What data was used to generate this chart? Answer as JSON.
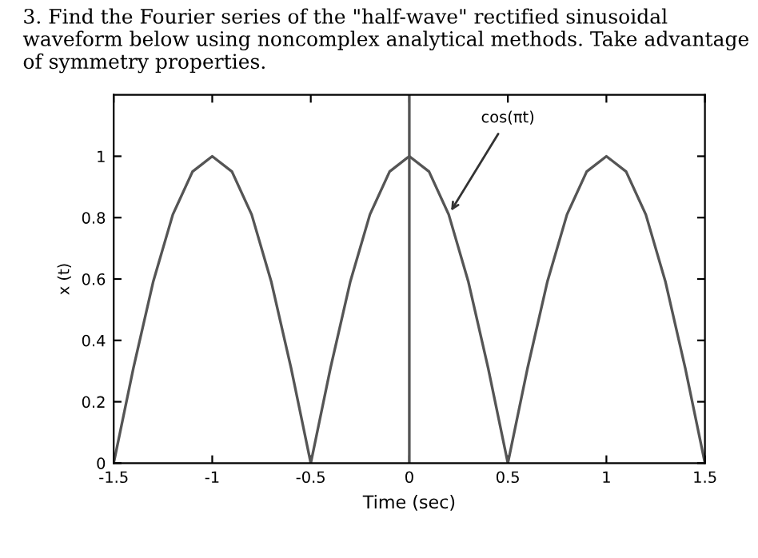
{
  "chart_data": {
    "type": "line",
    "title": "3. Find the Fourier series of the \"half-wave\" rectified sinusoidal waveform below using noncomplex analytical methods. Take advantage of symmetry properties.",
    "xlabel": "Time (sec)",
    "ylabel": "x (t)",
    "x": [
      -1.5,
      -1.4,
      -1.3,
      -1.2,
      -1.1,
      -1.0,
      -0.9,
      -0.8,
      -0.7,
      -0.6,
      -0.5,
      -0.4,
      -0.3,
      -0.2,
      -0.1,
      0,
      0.1,
      0.2,
      0.3,
      0.4,
      0.5,
      0.6,
      0.7,
      0.8,
      0.9,
      1.0,
      1.1,
      1.2,
      1.3,
      1.4,
      1.5
    ],
    "series": [
      {
        "color": "#555555",
        "values": [
          0,
          0.31,
          0.59,
          0.81,
          0.95,
          1,
          0.95,
          0.81,
          0.59,
          0.31,
          0,
          0.31,
          0.59,
          0.81,
          0.95,
          1,
          0.95,
          0.81,
          0.59,
          0.31,
          0,
          0.31,
          0.59,
          0.81,
          0.95,
          1,
          0.95,
          0.81,
          0.59,
          0.31,
          0
        ]
      }
    ],
    "xlim": [
      -1.5,
      1.5
    ],
    "ylim": [
      0,
      1.2
    ],
    "xticks": [
      -1.5,
      -1,
      -0.5,
      0,
      0.5,
      1,
      1.5
    ],
    "yticks": [
      0,
      0.2,
      0.4,
      0.6,
      0.8,
      1
    ],
    "ref_lines": [
      {
        "axis": "x",
        "value": 0,
        "color": "#555555"
      }
    ],
    "annotations": [
      {
        "text": "cos(πt)",
        "x": 0.2,
        "y": 0.81
      }
    ],
    "grid": false,
    "legend": false,
    "marker": "none",
    "line_style": "solid"
  }
}
